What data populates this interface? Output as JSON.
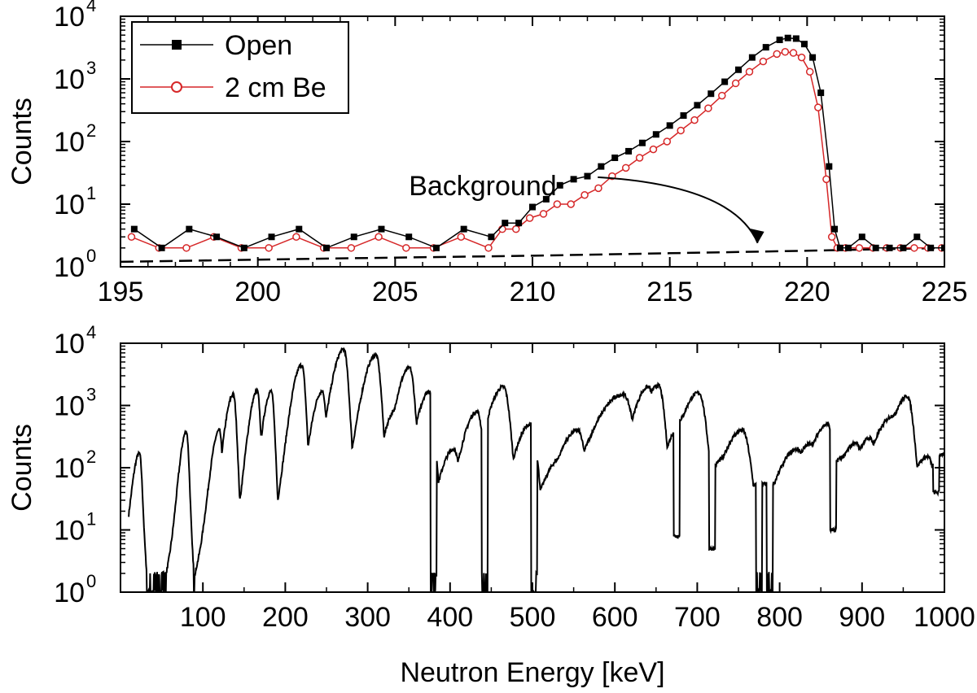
{
  "chart_data": [
    {
      "type": "line",
      "xlabel": "",
      "ylabel": "Counts",
      "xlim": [
        195,
        225
      ],
      "ylim": [
        1,
        10000
      ],
      "yscale": "log",
      "x_ticks": [
        "195",
        "200",
        "205",
        "210",
        "215",
        "220",
        "225"
      ],
      "y_ticks": [
        {
          "base": "10",
          "exp": "0"
        },
        {
          "base": "10",
          "exp": "1"
        },
        {
          "base": "10",
          "exp": "2"
        },
        {
          "base": "10",
          "exp": "3"
        },
        {
          "base": "10",
          "exp": "4"
        }
      ],
      "legend": {
        "position": "top-left"
      },
      "series": [
        {
          "name": "Open",
          "color": "#000000",
          "marker": "filled-square",
          "x": [
            195.5,
            196.5,
            197.5,
            198.5,
            199.5,
            200.5,
            201.5,
            202.5,
            203.5,
            204.5,
            205.5,
            206.5,
            207.5,
            208.5,
            209,
            209.5,
            210,
            210.5,
            211,
            211.5,
            212,
            212.5,
            213,
            213.5,
            214,
            214.5,
            215,
            215.5,
            216,
            216.5,
            217,
            217.5,
            218,
            218.5,
            219,
            219.3,
            219.6,
            219.9,
            220.2,
            220.5,
            220.8,
            221,
            221.2,
            221.5,
            222,
            222.5,
            223,
            223.5,
            224,
            224.5,
            225
          ],
          "y": [
            4,
            2,
            4,
            3,
            2,
            3,
            4,
            2,
            3,
            4,
            3,
            2,
            4,
            3,
            5,
            5,
            9,
            12,
            20,
            25,
            28,
            40,
            55,
            70,
            95,
            130,
            180,
            260,
            380,
            580,
            900,
            1400,
            2200,
            3200,
            4200,
            4500,
            4400,
            3600,
            2200,
            600,
            40,
            4,
            2,
            2,
            3,
            2,
            2,
            2,
            3,
            2,
            2
          ]
        },
        {
          "name": "2 cm Be",
          "color": "#d62728",
          "marker": "open-circle",
          "x": [
            195.4,
            196.4,
            197.4,
            198.4,
            199.4,
            200.4,
            201.4,
            202.4,
            203.4,
            204.4,
            205.4,
            206.4,
            207.4,
            208.4,
            208.9,
            209.4,
            209.9,
            210.4,
            210.9,
            211.4,
            211.9,
            212.4,
            212.9,
            213.4,
            213.9,
            214.4,
            214.9,
            215.4,
            215.9,
            216.4,
            216.9,
            217.4,
            217.9,
            218.4,
            218.9,
            219.2,
            219.5,
            219.8,
            220.1,
            220.4,
            220.7,
            220.9,
            221.1,
            221.4,
            221.9,
            222.4,
            222.9,
            223.4,
            223.9,
            224.4,
            224.9
          ],
          "y": [
            3,
            2,
            2,
            3,
            2,
            2,
            3,
            2,
            2,
            3,
            2,
            2,
            3,
            2,
            4,
            4,
            6,
            7,
            10,
            10,
            14,
            18,
            28,
            38,
            55,
            75,
            100,
            150,
            220,
            340,
            540,
            850,
            1300,
            1900,
            2500,
            2700,
            2600,
            2200,
            1300,
            350,
            25,
            3,
            2,
            2,
            2,
            2,
            2,
            2,
            2,
            2,
            2
          ]
        },
        {
          "name": "",
          "color": "#000000",
          "style": "dashed",
          "x": [
            195,
            200,
            205,
            210,
            215,
            220,
            225
          ],
          "y": [
            1.2,
            1.3,
            1.4,
            1.5,
            1.65,
            1.8,
            2.0
          ]
        }
      ],
      "annotations": [
        {
          "text": "Background",
          "x": 205.5,
          "y": 20,
          "arrow_to_x": 218.2,
          "arrow_to_y": 2.0
        }
      ]
    },
    {
      "type": "line",
      "xlabel": "Neutron Energy [keV]",
      "ylabel": "Counts",
      "xlim": [
        0,
        1000
      ],
      "ylim": [
        1,
        10000
      ],
      "yscale": "log",
      "x_ticks": [
        "100",
        "200",
        "300",
        "400",
        "500",
        "600",
        "700",
        "800",
        "900",
        "1000"
      ],
      "y_ticks": [
        {
          "base": "10",
          "exp": "0"
        },
        {
          "base": "10",
          "exp": "1"
        },
        {
          "base": "10",
          "exp": "2"
        },
        {
          "base": "10",
          "exp": "3"
        },
        {
          "base": "10",
          "exp": "4"
        }
      ],
      "series": [
        {
          "name": "",
          "color": "#000000",
          "baseline": 1,
          "peaks": [
            {
              "x": 23,
              "y": 170,
              "w": 5
            },
            {
              "x": 80,
              "y": 380,
              "w": 5
            },
            {
              "x": 120,
              "y": 400,
              "w": 6
            },
            {
              "x": 137,
              "y": 1500,
              "w": 7
            },
            {
              "x": 166,
              "y": 1700,
              "w": 7
            },
            {
              "x": 183,
              "y": 1700,
              "w": 7
            },
            {
              "x": 220,
              "y": 4500,
              "w": 9
            },
            {
              "x": 245,
              "y": 1700,
              "w": 9
            },
            {
              "x": 271,
              "y": 8000,
              "w": 11
            },
            {
              "x": 310,
              "y": 6500,
              "w": 12
            },
            {
              "x": 333,
              "y": 800,
              "w": 10
            },
            {
              "x": 351,
              "y": 4000,
              "w": 12
            },
            {
              "x": 375,
              "y": 1700,
              "w": 11
            },
            {
              "x": 405,
              "y": 200,
              "w": 11
            },
            {
              "x": 433,
              "y": 800,
              "w": 12
            },
            {
              "x": 465,
              "y": 2000,
              "w": 14
            },
            {
              "x": 498,
              "y": 500,
              "w": 13
            },
            {
              "x": 537,
              "y": 150,
              "w": 15
            },
            {
              "x": 555,
              "y": 400,
              "w": 16
            },
            {
              "x": 610,
              "y": 1500,
              "w": 24
            },
            {
              "x": 641,
              "y": 2000,
              "w": 14
            },
            {
              "x": 653,
              "y": 2100,
              "w": 14
            },
            {
              "x": 688,
              "y": 700,
              "w": 16
            },
            {
              "x": 702,
              "y": 1600,
              "w": 16
            },
            {
              "x": 736,
              "y": 150,
              "w": 16
            },
            {
              "x": 755,
              "y": 400,
              "w": 16
            },
            {
              "x": 822,
              "y": 200,
              "w": 16
            },
            {
              "x": 840,
              "y": 250,
              "w": 16
            },
            {
              "x": 858,
              "y": 500,
              "w": 14
            },
            {
              "x": 878,
              "y": 150,
              "w": 14
            },
            {
              "x": 893,
              "y": 250,
              "w": 14
            },
            {
              "x": 910,
              "y": 300,
              "w": 14
            },
            {
              "x": 940,
              "y": 700,
              "w": 18
            },
            {
              "x": 955,
              "y": 1400,
              "w": 14
            },
            {
              "x": 980,
              "y": 150,
              "w": 14
            },
            {
              "x": 1000,
              "y": 170,
              "w": 14
            }
          ],
          "dips": [
            {
              "x": 380,
              "y": 1
            },
            {
              "x": 442,
              "y": 1
            },
            {
              "x": 502,
              "y": 1
            },
            {
              "x": 675,
              "y": 8
            },
            {
              "x": 718,
              "y": 5
            },
            {
              "x": 775,
              "y": 1
            },
            {
              "x": 788,
              "y": 1
            },
            {
              "x": 865,
              "y": 10
            },
            {
              "x": 990,
              "y": 40
            }
          ]
        }
      ]
    }
  ]
}
